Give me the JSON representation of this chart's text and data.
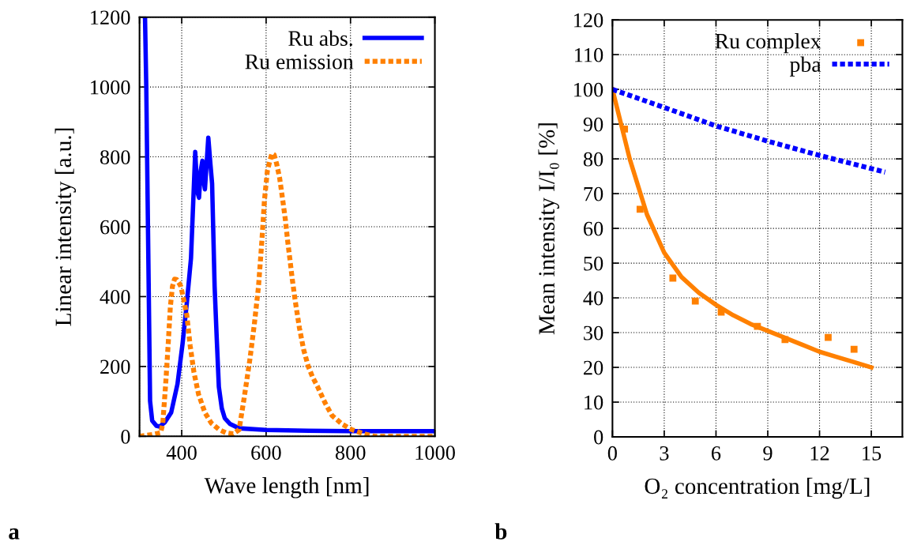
{
  "chart_data": [
    {
      "type": "line",
      "xlabel": "Wave length [nm]",
      "ylabel": "Linear intensity [a.u.]",
      "annotations": [
        "a"
      ],
      "xlim": [
        300,
        1000
      ],
      "ylim": [
        0,
        1200
      ],
      "xticks": [
        {
          "value": 300,
          "label": null
        },
        400,
        600,
        800,
        1000
      ],
      "yticks": [
        0,
        200,
        400,
        600,
        800,
        1000,
        1200
      ],
      "grid": true,
      "legend": "top right",
      "marker": "none",
      "series": [
        {
          "name": "Ru abs.",
          "color": "#0000ff",
          "line_style": "solid",
          "x": [
            313,
            316,
            320,
            325,
            330,
            340,
            348,
            360,
            375,
            390,
            402,
            412,
            422,
            432,
            437,
            441,
            445,
            449,
            452,
            455,
            459,
            463,
            468,
            472,
            478,
            483,
            488,
            495,
            502,
            515,
            536,
            600,
            700,
            800,
            900,
            1000
          ],
          "values": [
            1200,
            1000,
            600,
            101,
            45,
            30,
            28,
            40,
            68,
            150,
            265,
            380,
            510,
            814,
            700,
            683,
            760,
            789,
            730,
            707,
            780,
            855,
            780,
            724,
            429,
            280,
            142,
            80,
            52,
            35,
            23,
            18,
            16,
            15,
            15,
            15
          ]
        },
        {
          "name": "Ru emission",
          "color": "#ff8000",
          "line_style": "dotted",
          "x": [
            300,
            330,
            350,
            355,
            362,
            368,
            373,
            378,
            383,
            388,
            393,
            398,
            405,
            412,
            420,
            429,
            440,
            455,
            470,
            489,
            505,
            522,
            536,
            548,
            562,
            572,
            582,
            590,
            596,
            603,
            609,
            614,
            619,
            625,
            632,
            639,
            646,
            651,
            656,
            662,
            669,
            679,
            689,
            700,
            710,
            722,
            740,
            756,
            780,
            803,
            830,
            857,
            900,
            950,
            1000
          ],
          "values": [
            0,
            5,
            10,
            35,
            150,
            265,
            370,
            429,
            450,
            449,
            440,
            429,
            390,
            347,
            260,
            183,
            120,
            68,
            38,
            19,
            10,
            7,
            19,
            110,
            224,
            320,
            429,
            560,
            675,
            760,
            789,
            810,
            806,
            780,
            740,
            680,
            617,
            560,
            511,
            450,
            388,
            310,
            248,
            200,
            170,
            142,
            95,
            60,
            35,
            19,
            8,
            0,
            0,
            0,
            0
          ]
        }
      ]
    },
    {
      "type": "line",
      "xlabel": "O₂ concentration [mg/L]",
      "ylabel": "Mean intensity I/I₀ [%]",
      "annotations": [
        "b"
      ],
      "xlim": [
        0,
        16.8
      ],
      "ylim": [
        0,
        120
      ],
      "xticks": [
        0,
        3,
        6,
        9,
        12,
        15
      ],
      "yticks": [
        0,
        10,
        20,
        30,
        40,
        50,
        60,
        70,
        80,
        90,
        100,
        110,
        120
      ],
      "grid": true,
      "legend": "top right",
      "series": [
        {
          "name": "Ru complex",
          "type": "scatter",
          "color": "#ff8000",
          "marker": "square",
          "x": [
            0.7,
            1.6,
            3.5,
            4.8,
            6.3,
            8.4,
            10.0,
            12.5,
            14.0
          ],
          "values": [
            88.6,
            65.5,
            45.7,
            39.1,
            35.9,
            31.8,
            28.0,
            28.6,
            25.2
          ]
        },
        {
          "color": "#ff8000",
          "line_style": "solid",
          "marker": "none",
          "x": [
            0,
            0.5,
            1,
            1.5,
            2,
            3,
            4,
            5,
            6,
            7,
            8,
            9,
            10,
            11,
            12,
            13,
            14,
            15
          ],
          "values": [
            100,
            90,
            80,
            72,
            64,
            53,
            46,
            41.5,
            38,
            35,
            32.5,
            30.5,
            28.5,
            26.5,
            24.5,
            23,
            21.5,
            20
          ]
        },
        {
          "name": "pba",
          "color": "#0000ff",
          "line_style": "dotted",
          "marker": "none",
          "x": [
            0,
            3,
            6,
            9,
            12,
            15.8
          ],
          "values": [
            100,
            94.8,
            89.5,
            85.1,
            81,
            76.2
          ]
        }
      ]
    }
  ]
}
